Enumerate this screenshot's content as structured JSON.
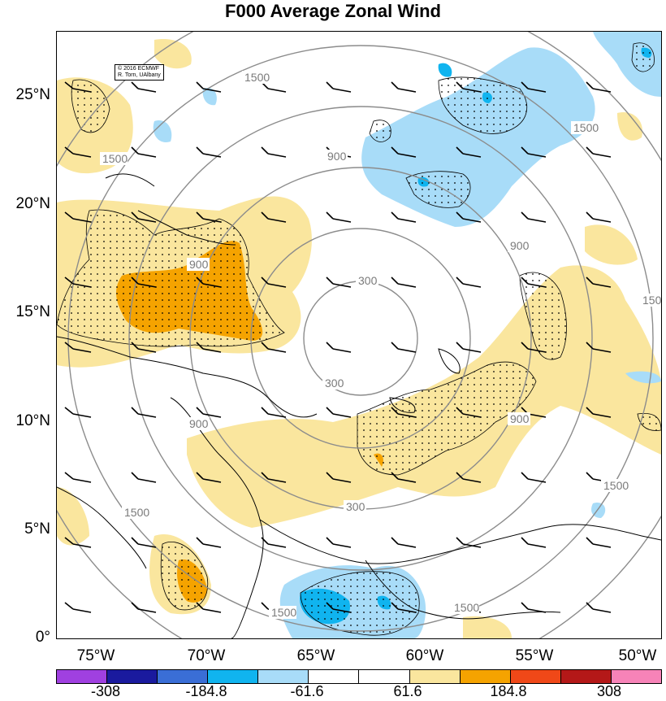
{
  "title": "F000 Average Zonal Wind",
  "credit": [
    "© 2016 ECMWF",
    "R. Torn, UAlbany"
  ],
  "lat_labels": [
    "25°N",
    "20°N",
    "15°N",
    "10°N",
    "5°N",
    "0°"
  ],
  "lon_labels": [
    "75°W",
    "70°W",
    "65°W",
    "60°W",
    "55°W",
    "50°W"
  ],
  "contour_labels": [
    "300",
    "900",
    "1500"
  ],
  "colorbar": {
    "labels": [
      "-308",
      "-184.8",
      "-61.6",
      "61.6",
      "184.8",
      "308"
    ],
    "colors": [
      "#a040e0",
      "#1a1a9e",
      "#3a6ed6",
      "#10b4ef",
      "#a8dcf8",
      "#ffffff",
      "#ffffff",
      "#fae69e",
      "#f5a300",
      "#f04818",
      "#b41818",
      "#f783b8"
    ]
  }
}
